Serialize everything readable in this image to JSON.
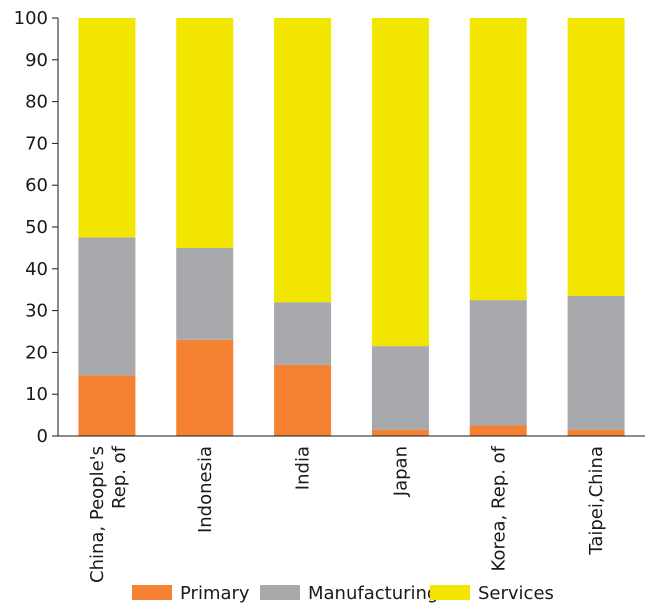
{
  "chart_data": {
    "type": "bar",
    "stacked": true,
    "categories": [
      "China, People's Rep. of",
      "Indonesia",
      "India",
      "Japan",
      "Korea, Rep. of",
      "Taipei,China"
    ],
    "series": [
      {
        "name": "Primary",
        "values": [
          14.5,
          23,
          17,
          1.5,
          2.5,
          1.5
        ],
        "color": "#F58232"
      },
      {
        "name": "Manufacturing",
        "values": [
          33,
          22,
          15,
          20,
          30,
          32
        ],
        "color": "#A7A9AC"
      },
      {
        "name": "Services",
        "values": [
          52.5,
          55,
          68,
          78.5,
          67.5,
          66.5
        ],
        "color": "#F2E500"
      }
    ],
    "ylim": [
      0,
      100
    ],
    "yticks": [
      0,
      10,
      20,
      30,
      40,
      50,
      60,
      70,
      80,
      90,
      100
    ],
    "legend": "bottom"
  }
}
